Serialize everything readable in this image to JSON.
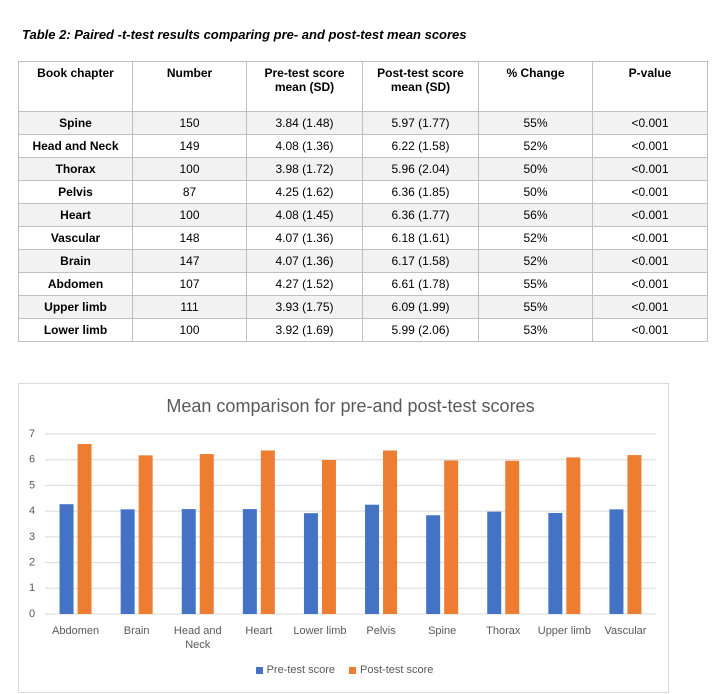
{
  "caption": "Table 2: Paired -t-test results comparing pre- and post-test mean scores",
  "table": {
    "header": [
      "Book chapter",
      "Number",
      "Pre-test score mean (SD)",
      "Post-test score mean (SD)",
      "% Change",
      "P-value"
    ],
    "rows": [
      [
        "Spine",
        "150",
        "3.84 (1.48)",
        "5.97 (1.77)",
        "55%",
        "<0.001"
      ],
      [
        "Head and Neck",
        "149",
        "4.08 (1.36)",
        "6.22 (1.58)",
        "52%",
        "<0.001"
      ],
      [
        "Thorax",
        "100",
        "3.98 (1.72)",
        "5.96 (2.04)",
        "50%",
        "<0.001"
      ],
      [
        "Pelvis",
        "87",
        "4.25 (1.62)",
        "6.36 (1.85)",
        "50%",
        "<0.001"
      ],
      [
        "Heart",
        "100",
        "4.08 (1.45)",
        "6.36 (1.77)",
        "56%",
        "<0.001"
      ],
      [
        "Vascular",
        "148",
        "4.07 (1.36)",
        "6.18 (1.61)",
        "52%",
        "<0.001"
      ],
      [
        "Brain",
        "147",
        "4.07 (1.36)",
        "6.17 (1.58)",
        "52%",
        "<0.001"
      ],
      [
        "Abdomen",
        "107",
        "4.27 (1.52)",
        "6.61 (1.78)",
        "55%",
        "<0.001"
      ],
      [
        "Upper limb",
        "111",
        "3.93 (1.75)",
        "6.09 (1.99)",
        "55%",
        "<0.001"
      ],
      [
        "Lower limb",
        "100",
        "3.92 (1.69)",
        "5.99 (2.06)",
        "53%",
        "<0.001"
      ]
    ]
  },
  "chart_data": {
    "type": "bar",
    "title": "Mean comparison for pre-and post-test scores",
    "categories": [
      "Abdomen",
      "Brain",
      "Head and Neck",
      "Heart",
      "Lower limb",
      "Pelvis",
      "Spine",
      "Thorax",
      "Upper limb",
      "Vascular"
    ],
    "series": [
      {
        "name": "Pre-test score",
        "color": "#4472c4",
        "values": [
          4.27,
          4.07,
          4.08,
          4.08,
          3.92,
          4.25,
          3.84,
          3.98,
          3.93,
          4.07
        ]
      },
      {
        "name": "Post-test score",
        "color": "#ed7d31",
        "values": [
          6.61,
          6.17,
          6.22,
          6.36,
          5.99,
          6.36,
          5.97,
          5.96,
          6.09,
          6.18
        ]
      }
    ],
    "ylim": [
      0,
      7
    ],
    "yticks": [
      0,
      1,
      2,
      3,
      4,
      5,
      6,
      7
    ],
    "grid": true,
    "legend": "bottom"
  }
}
